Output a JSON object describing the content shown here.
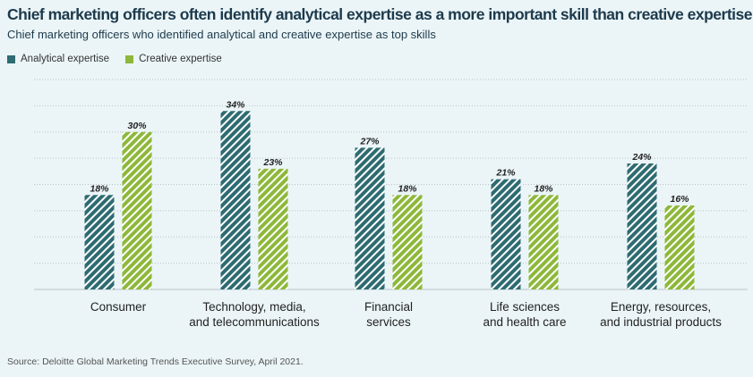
{
  "title": "Chief marketing officers often identify analytical expertise as a more important skill than creative expertise",
  "subtitle": "Chief marketing officers who identified analytical and creative expertise as top skills",
  "source": "Source: Deloitte Global Marketing Trends Executive Survey, April 2021.",
  "colors": {
    "analytical": "#2e6b72",
    "creative": "#8db83a",
    "background": "#ebf5f7",
    "grid": "#b9c3c6"
  },
  "chart_data": {
    "type": "bar",
    "title": "Chief marketing officers often identify analytical expertise as a more important skill than creative expertise",
    "subtitle": "Chief marketing officers who identified analytical and creative expertise as top skills",
    "categories": [
      [
        "Consumer"
      ],
      [
        "Technology, media,",
        "and telecommunications"
      ],
      [
        "Financial",
        "services"
      ],
      [
        "Life sciences",
        "and health care"
      ],
      [
        "Energy, resources,",
        "and industrial products"
      ]
    ],
    "series": [
      {
        "name": "Analytical expertise",
        "values": [
          18,
          34,
          27,
          21,
          24
        ]
      },
      {
        "name": "Creative expertise",
        "values": [
          30,
          23,
          18,
          18,
          16
        ]
      }
    ],
    "value_suffix": "%",
    "ylim": [
      0,
      40
    ],
    "grid": true,
    "legend": "top-left",
    "xlabel": "",
    "ylabel": ""
  }
}
